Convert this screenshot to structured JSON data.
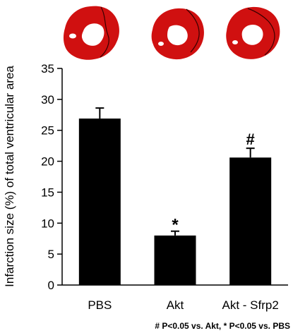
{
  "chart_data": {
    "type": "bar",
    "categories": [
      "PBS",
      "Akt",
      "Akt - Sfrp2"
    ],
    "values": [
      26.9,
      8.0,
      20.6
    ],
    "errors": [
      1.7,
      0.7,
      1.5
    ],
    "markers": [
      "",
      "*",
      "#"
    ],
    "ylabel": "Infarction size (%) of total ventricular area",
    "ylim": [
      0,
      35
    ],
    "yticks": [
      0,
      5,
      10,
      15,
      20,
      25,
      30,
      35
    ],
    "footnote": "# P<0.05 vs. Akt, * P<0.05 vs. PBS",
    "bar_color": "#000000",
    "grid": false,
    "legend": "none"
  },
  "images": {
    "heart_sections": [
      "heart-section-pbs",
      "heart-section-akt",
      "heart-section-akt-sfrp2"
    ],
    "tissue_color": "#d01010",
    "infarct_outline_color": "#3a0000"
  }
}
